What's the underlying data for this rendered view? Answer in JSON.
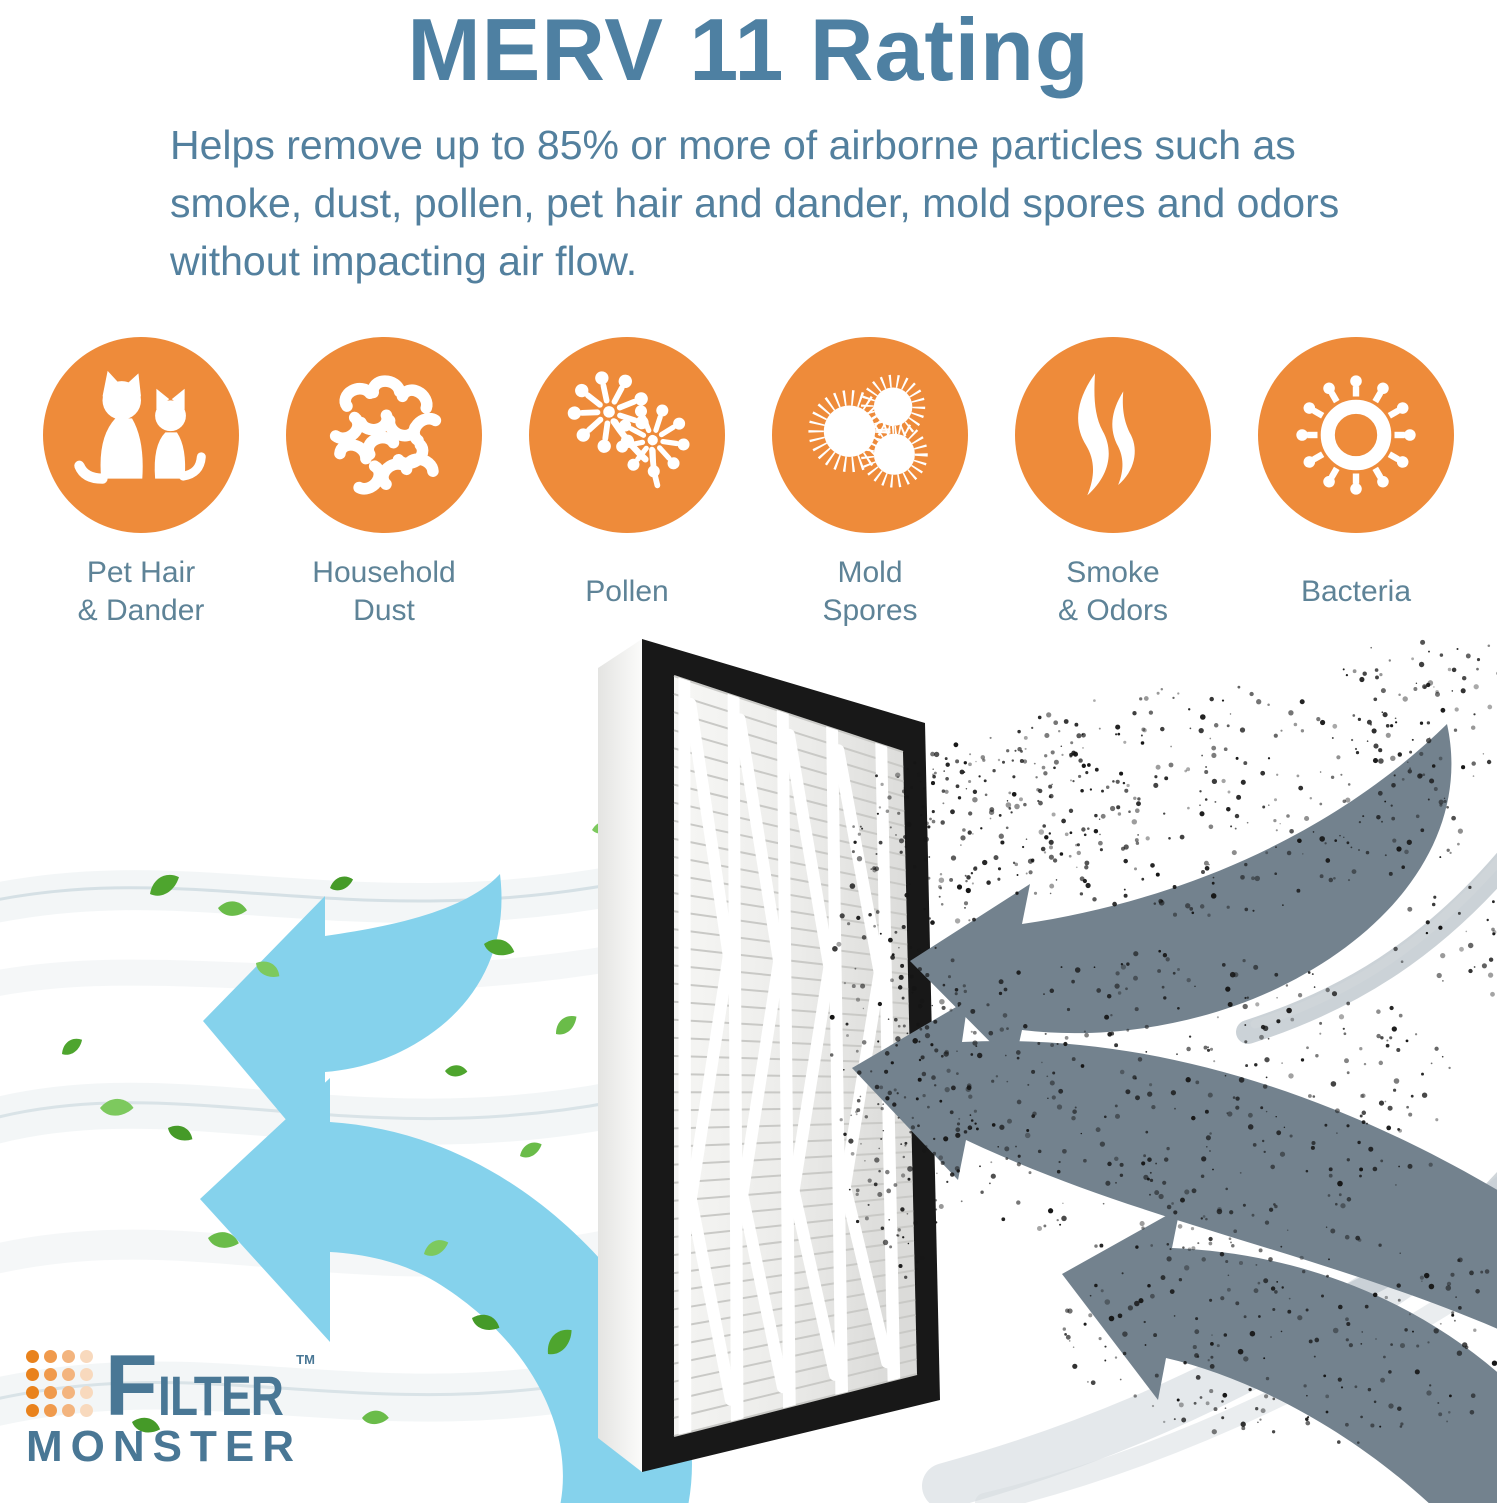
{
  "header": {
    "title": "MERV 11 Rating",
    "subtitle_lines": [
      "Helps remove up to 85% or more of airborne particles such as",
      "smoke, dust, pollen, pet hair and dander, mold spores and odors",
      "without impacting air flow."
    ]
  },
  "benefits": [
    {
      "icon": "pet-hair-dander-icon",
      "label_lines": [
        "Pet Hair",
        "& Dander"
      ]
    },
    {
      "icon": "household-dust-icon",
      "label_lines": [
        "Household",
        "Dust"
      ]
    },
    {
      "icon": "pollen-icon",
      "label_lines": [
        "Pollen"
      ]
    },
    {
      "icon": "mold-spores-icon",
      "label_lines": [
        "Mold",
        "Spores"
      ]
    },
    {
      "icon": "smoke-odors-icon",
      "label_lines": [
        "Smoke",
        "& Odors"
      ]
    },
    {
      "icon": "bacteria-icon",
      "label_lines": [
        "Bacteria"
      ]
    }
  ],
  "logo": {
    "first_letter": "F",
    "rest": "ILTER",
    "second_line": "MONSTER",
    "trademark": "TM"
  },
  "colors": {
    "orange": "#EE8B3A",
    "title_blue": "#4E80A2",
    "text_blue": "#53809E",
    "label_blue": "#5E8397",
    "clean_air": "#85D2EC",
    "dirty_air": "#73828E",
    "leaf_green": "#55AB35",
    "frame_black": "#181818",
    "logo_blue": "#497795",
    "dot1": "#E9821C",
    "dot2": "#F09A4C",
    "dot3": "#F3B47E",
    "dot4": "#F8D9BD"
  }
}
